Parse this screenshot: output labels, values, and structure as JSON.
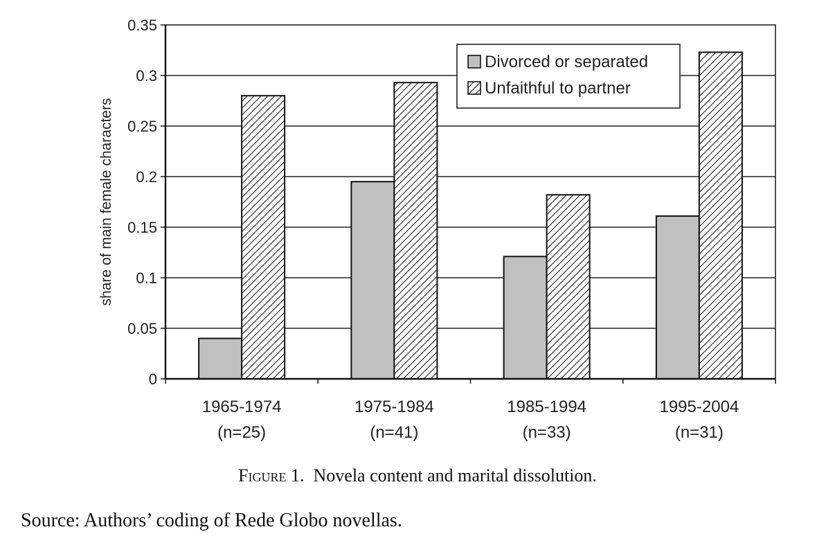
{
  "chart_data": {
    "type": "bar",
    "categories": [
      "1965-1974",
      "1975-1984",
      "1985-1994",
      "1995-2004"
    ],
    "category_sublabels": [
      "(n=25)",
      "(n=41)",
      "(n=33)",
      "(n=31)"
    ],
    "series": [
      {
        "name": "Divorced or separated",
        "values": [
          0.04,
          0.195,
          0.121,
          0.161
        ],
        "color": "#c0c0c0",
        "pattern": "solid"
      },
      {
        "name": "Unfaithful to partner",
        "values": [
          0.28,
          0.293,
          0.182,
          0.323
        ],
        "color": "#ffffff",
        "pattern": "diagonal-hatch"
      }
    ],
    "ylabel": "share of main female characters",
    "xlabel": "",
    "ylim": [
      0,
      0.35
    ],
    "yticks": [
      "0",
      "0.05",
      "0.1",
      "0.15",
      "0.2",
      "0.25",
      "0.3",
      "0.35"
    ],
    "grid": true,
    "legend_position": "top-right"
  },
  "caption": {
    "label": "Figure 1.",
    "text": "Novela content and marital dissolution."
  },
  "source": "Source: Authors’ coding of Rede Globo novellas."
}
